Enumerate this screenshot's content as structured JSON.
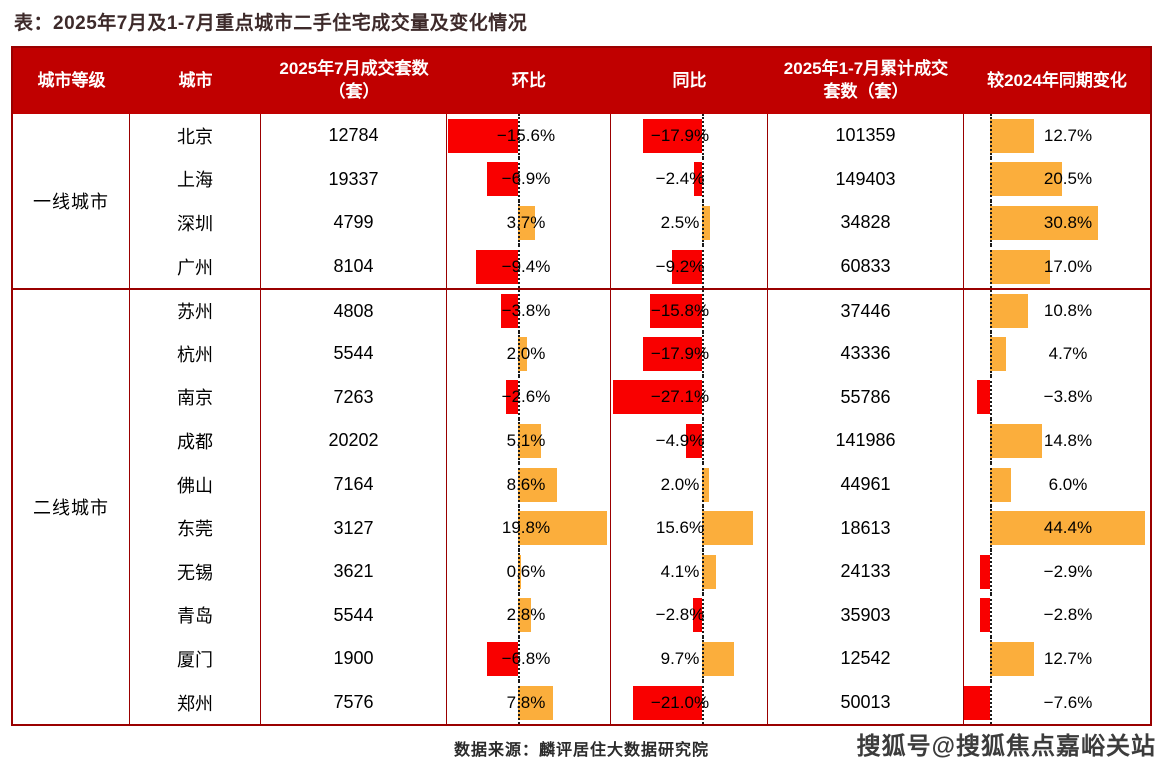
{
  "title": "表：2025年7月及1-7月重点城市二手住宅成交量及变化情况",
  "footer": {
    "source_note": "数据来源：麟评居住大数据研究院",
    "watermark": "搜狐号@搜狐焦点嘉峪关站"
  },
  "colors": {
    "header_bg": "#c00000",
    "border": "#9a0000",
    "bar_negative": "#f90000",
    "bar_positive": "#fbae3c",
    "header_text": "#ffffff"
  },
  "chart_data": {
    "type": "table",
    "title": "表：2025年7月及1-7月重点城市二手住宅成交量及变化情况",
    "columns": [
      "城市等级",
      "城市",
      "2025年7月成交套数（套）",
      "环比",
      "同比",
      "2025年1-7月累计成交套数（套）",
      "较2024年同期变化"
    ],
    "bar_style_note": "环比 / 同比 / 较2024年同期变化 三列为条形图：负值为红色条向左，正值为橙色条向右，虚线为零轴",
    "groups": [
      {
        "tier": "一线城市",
        "rows": [
          {
            "city": "北京",
            "jul_2025_units": 12784,
            "mom_pct": -15.6,
            "yoy_pct": -17.9,
            "cum_jan_jul_units": 101359,
            "vs_2024_pct": 12.7
          },
          {
            "city": "上海",
            "jul_2025_units": 19337,
            "mom_pct": -6.9,
            "yoy_pct": -2.4,
            "cum_jan_jul_units": 149403,
            "vs_2024_pct": 20.5
          },
          {
            "city": "深圳",
            "jul_2025_units": 4799,
            "mom_pct": 3.7,
            "yoy_pct": 2.5,
            "cum_jan_jul_units": 34828,
            "vs_2024_pct": 30.8
          },
          {
            "city": "广州",
            "jul_2025_units": 8104,
            "mom_pct": -9.4,
            "yoy_pct": -9.2,
            "cum_jan_jul_units": 60833,
            "vs_2024_pct": 17.0
          }
        ]
      },
      {
        "tier": "二线城市",
        "rows": [
          {
            "city": "苏州",
            "jul_2025_units": 4808,
            "mom_pct": -3.8,
            "yoy_pct": -15.8,
            "cum_jan_jul_units": 37446,
            "vs_2024_pct": 10.8
          },
          {
            "city": "杭州",
            "jul_2025_units": 5544,
            "mom_pct": 2.0,
            "yoy_pct": -17.9,
            "cum_jan_jul_units": 43336,
            "vs_2024_pct": 4.7
          },
          {
            "city": "南京",
            "jul_2025_units": 7263,
            "mom_pct": -2.6,
            "yoy_pct": -27.1,
            "cum_jan_jul_units": 55786,
            "vs_2024_pct": -3.8
          },
          {
            "city": "成都",
            "jul_2025_units": 20202,
            "mom_pct": 5.1,
            "yoy_pct": -4.9,
            "cum_jan_jul_units": 141986,
            "vs_2024_pct": 14.8
          },
          {
            "city": "佛山",
            "jul_2025_units": 7164,
            "mom_pct": 8.6,
            "yoy_pct": 2.0,
            "cum_jan_jul_units": 44961,
            "vs_2024_pct": 6.0
          },
          {
            "city": "东莞",
            "jul_2025_units": 3127,
            "mom_pct": 19.8,
            "yoy_pct": 15.6,
            "cum_jan_jul_units": 18613,
            "vs_2024_pct": 44.4
          },
          {
            "city": "无锡",
            "jul_2025_units": 3621,
            "mom_pct": 0.6,
            "yoy_pct": 4.1,
            "cum_jan_jul_units": 24133,
            "vs_2024_pct": -2.9
          },
          {
            "city": "青岛",
            "jul_2025_units": 5544,
            "mom_pct": 2.8,
            "yoy_pct": -2.8,
            "cum_jan_jul_units": 35903,
            "vs_2024_pct": -2.8
          },
          {
            "city": "厦门",
            "jul_2025_units": 1900,
            "mom_pct": -6.8,
            "yoy_pct": 9.7,
            "cum_jan_jul_units": 12542,
            "vs_2024_pct": 12.7
          },
          {
            "city": "郑州",
            "jul_2025_units": 7576,
            "mom_pct": 7.8,
            "yoy_pct": -21.0,
            "cum_jan_jul_units": 50013,
            "vs_2024_pct": -7.6
          }
        ]
      }
    ]
  }
}
